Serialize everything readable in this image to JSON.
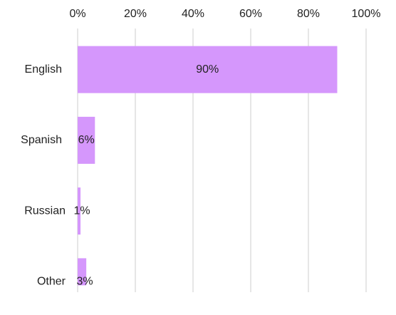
{
  "chart_data": {
    "type": "hbar",
    "categories": [
      "English",
      "Spanish",
      "Russian",
      "Other"
    ],
    "values": [
      90,
      6,
      1,
      3
    ],
    "value_labels": [
      "90%",
      "6%",
      "1%",
      "3%"
    ],
    "color": "#d597fc",
    "xlim": [
      0,
      100
    ],
    "xticks": [
      {
        "value": 0,
        "label": "0%"
      },
      {
        "value": 20,
        "label": "20%"
      },
      {
        "value": 40,
        "label": "40%"
      },
      {
        "value": 60,
        "label": "60%"
      },
      {
        "value": 80,
        "label": "80%"
      },
      {
        "value": 100,
        "label": "100%"
      }
    ],
    "grid": true
  }
}
